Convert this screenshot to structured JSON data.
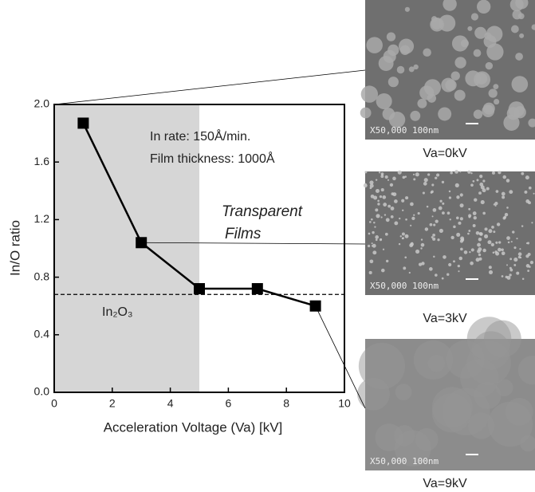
{
  "chart_data": {
    "type": "line",
    "x_label": "Acceleration Voltage (Va) [kV]",
    "y_label": "In/O ratio",
    "xlim": [
      0,
      10
    ],
    "xticks": [
      0,
      2,
      4,
      6,
      8,
      10
    ],
    "ylim": [
      0,
      2.0
    ],
    "yticks": [
      {
        "value": 0,
        "label": "0.0"
      },
      {
        "value": 0.4,
        "label": "0.4"
      },
      {
        "value": 0.8,
        "label": "0.8"
      },
      {
        "value": 1.2,
        "label": "1.2"
      },
      {
        "value": 1.6,
        "label": "1.6"
      },
      {
        "value": 2.0,
        "label": "2.0"
      }
    ],
    "series": [
      {
        "color": "#000000",
        "x": [
          1,
          3,
          5,
          7,
          9
        ],
        "values": [
          1.87,
          1.04,
          0.72,
          0.72,
          0.6
        ]
      }
    ],
    "shaded_region": [
      0,
      5
    ],
    "reference_line": {
      "value": 0.68,
      "label": "In₂O₃"
    },
    "annotations": [
      "In rate: 150Å/min.",
      "Film thickness: 1000Å",
      "Transparent",
      "Films"
    ]
  },
  "images": [
    {
      "caption": "Va=0kV",
      "scale_label": "X50,000 100nm"
    },
    {
      "caption": "Va=3kV",
      "scale_label": "X50,000 100nm"
    },
    {
      "caption": "Va=9kV",
      "scale_label": "X50,000 100nm"
    }
  ]
}
